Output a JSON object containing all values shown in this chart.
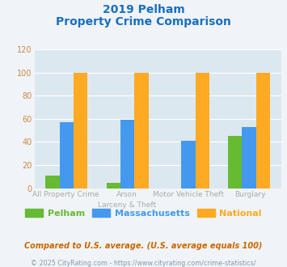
{
  "title_line1": "2019 Pelham",
  "title_line2": "Property Crime Comparison",
  "title_color": "#1a6fbd",
  "cat_labels_row1": [
    "All Property Crime",
    "Arson",
    "Motor Vehicle Theft",
    "Burglary"
  ],
  "cat_labels_row2": [
    "",
    "Larceny & Theft",
    "",
    ""
  ],
  "pelham": [
    11,
    5,
    0,
    45
  ],
  "massachusetts": [
    57,
    59,
    41,
    53
  ],
  "national": [
    100,
    100,
    100,
    100
  ],
  "pelham_color": "#66bb33",
  "massachusetts_color": "#4499ee",
  "national_color": "#ffaa22",
  "ylim": [
    0,
    120
  ],
  "yticks": [
    0,
    20,
    40,
    60,
    80,
    100,
    120
  ],
  "ytick_color": "#cc8844",
  "bg_color": "#f0f4f8",
  "plot_bg": "#dce8ef",
  "footer_text": "Compared to U.S. average. (U.S. average equals 100)",
  "copyright_text": "© 2025 CityRating.com - https://www.cityrating.com/crime-statistics/",
  "legend_labels": [
    "Pelham",
    "Massachusetts",
    "National"
  ],
  "xlabel_color": "#aaaaaa",
  "footer_color": "#cc6600",
  "copyright_color": "#8899aa"
}
